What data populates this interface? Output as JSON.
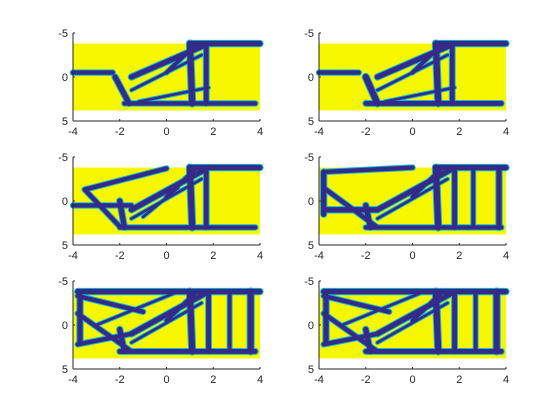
{
  "colors": {
    "background": "#f7f700",
    "structure": "#352a87",
    "edge": "#0fbbd3",
    "axis": "#262626"
  },
  "chart_data": [
    {
      "type": "image",
      "title": "",
      "xlabel": "",
      "ylabel": "",
      "xlim": [
        -4,
        4
      ],
      "ylim": [
        -5,
        5
      ],
      "y_reversed": true,
      "xticks": [
        "-4",
        "-2",
        "0",
        "2",
        "4"
      ],
      "yticks": [
        "-5",
        "0",
        "5"
      ],
      "bars": [
        [
          -4,
          -0.5,
          -2.3,
          -0.5,
          0.5
        ],
        [
          -2.2,
          0,
          -1.6,
          3,
          0.6
        ],
        [
          -1.8,
          3,
          3.8,
          3,
          0.5
        ],
        [
          -1.5,
          0,
          1.8,
          -3.8,
          0.6
        ],
        [
          0,
          -0.5,
          1.3,
          -3.8,
          0.45
        ],
        [
          1,
          -3.8,
          1.1,
          3,
          0.7
        ],
        [
          1.7,
          -3.8,
          1.7,
          3,
          0.55
        ],
        [
          1,
          -3.8,
          4,
          -3.8,
          0.6
        ],
        [
          -1.5,
          1.5,
          1.5,
          -2.5,
          0.3
        ],
        [
          -1.2,
          2.8,
          1.8,
          1.2,
          0.3
        ]
      ]
    },
    {
      "type": "image",
      "title": "",
      "xlabel": "",
      "ylabel": "",
      "xlim": [
        -4,
        4
      ],
      "ylim": [
        -5,
        5
      ],
      "y_reversed": true,
      "xticks": [
        "-4",
        "-2",
        "0",
        "2",
        "4"
      ],
      "yticks": [
        "-5",
        "0",
        "5"
      ],
      "bars": [
        [
          -4,
          -0.5,
          -2.3,
          -0.5,
          0.5
        ],
        [
          -2,
          0,
          -1.5,
          3,
          0.7
        ],
        [
          -2,
          3,
          3.8,
          3,
          0.55
        ],
        [
          -1.5,
          0,
          1.8,
          -3.8,
          0.6
        ],
        [
          0,
          -0.5,
          1.3,
          -3.8,
          0.45
        ],
        [
          1,
          -3.8,
          1.1,
          3,
          0.7
        ],
        [
          1.7,
          -3.8,
          1.7,
          3,
          0.55
        ],
        [
          1,
          -3.8,
          4,
          -3.8,
          0.6
        ],
        [
          -1.5,
          1.5,
          1.5,
          -2.5,
          0.3
        ],
        [
          -1.2,
          2.8,
          1.8,
          1.2,
          0.3
        ]
      ]
    },
    {
      "type": "image",
      "title": "",
      "xlabel": "",
      "ylabel": "",
      "xlim": [
        -4,
        4
      ],
      "ylim": [
        -5,
        5
      ],
      "y_reversed": true,
      "xticks": [
        "-4",
        "-2",
        "0",
        "2",
        "4"
      ],
      "yticks": [
        "-5",
        "0",
        "5"
      ],
      "bars": [
        [
          -4,
          0.5,
          -1.5,
          0.5,
          0.5
        ],
        [
          -3.5,
          -1.3,
          0,
          -3.7,
          0.5
        ],
        [
          -3.5,
          -1.3,
          -2,
          2.9,
          0.5
        ],
        [
          -2,
          0,
          -1.8,
          3,
          0.6
        ],
        [
          -2,
          3,
          3.8,
          3,
          0.5
        ],
        [
          -1.5,
          1,
          1.8,
          -3.8,
          0.6
        ],
        [
          0,
          -0.5,
          1.3,
          -3.8,
          0.45
        ],
        [
          1,
          -3.8,
          1.1,
          3,
          0.7
        ],
        [
          1.7,
          -3.8,
          1.7,
          3,
          0.55
        ],
        [
          1,
          -3.8,
          4,
          -3.8,
          0.6
        ],
        [
          -1.5,
          2,
          1.5,
          -2.5,
          0.3
        ],
        [
          -1,
          1.8,
          0.5,
          -1.5,
          0.3
        ]
      ]
    },
    {
      "type": "image",
      "title": "",
      "xlabel": "",
      "ylabel": "",
      "xlim": [
        -4,
        4
      ],
      "ylim": [
        -5,
        5
      ],
      "y_reversed": true,
      "xticks": [
        "-4",
        "-2",
        "0",
        "2",
        "4"
      ],
      "yticks": [
        "-5",
        "0",
        "5"
      ],
      "bars": [
        [
          -3.8,
          -3.3,
          -3.8,
          1.5,
          0.6
        ],
        [
          -3.8,
          1,
          -1.5,
          1,
          0.6
        ],
        [
          -3.8,
          -3.3,
          0,
          -3.8,
          0.5
        ],
        [
          -3.8,
          -1.5,
          -1.5,
          3,
          0.5
        ],
        [
          -2,
          0.5,
          -1.8,
          3,
          0.6
        ],
        [
          -2,
          3,
          3.8,
          3,
          0.5
        ],
        [
          -1.5,
          1,
          1.8,
          -3.8,
          0.6
        ],
        [
          0,
          -0.5,
          1.3,
          -3.8,
          0.45
        ],
        [
          1,
          -3.8,
          1.1,
          3,
          0.7
        ],
        [
          1.8,
          -3.8,
          1.8,
          3,
          0.55
        ],
        [
          2.6,
          -3.8,
          2.6,
          3,
          0.45
        ],
        [
          3.7,
          -3.8,
          3.7,
          3,
          0.6
        ],
        [
          1,
          -3.8,
          4,
          -3.8,
          0.6
        ],
        [
          -1.5,
          2,
          1.5,
          -2.5,
          0.3
        ]
      ]
    },
    {
      "type": "image",
      "title": "",
      "xlabel": "",
      "ylabel": "",
      "xlim": [
        -4,
        4
      ],
      "ylim": [
        -5,
        5
      ],
      "y_reversed": true,
      "xticks": [
        "-4",
        "-2",
        "0",
        "2",
        "4"
      ],
      "yticks": [
        "-5",
        "0",
        "5"
      ],
      "bars": [
        [
          -3.7,
          -3.3,
          -3.7,
          2,
          0.6
        ],
        [
          -3.8,
          -3.8,
          4,
          -3.8,
          0.6
        ],
        [
          -3.8,
          2.2,
          -1.5,
          1,
          0.5
        ],
        [
          -3.8,
          -3.3,
          -1,
          -1.5,
          0.5
        ],
        [
          -3.8,
          -1.3,
          -1.5,
          3,
          0.5
        ],
        [
          -2,
          0.5,
          -1.8,
          3,
          0.6
        ],
        [
          -2,
          3,
          3.8,
          3,
          0.55
        ],
        [
          -1.5,
          1,
          1.8,
          -3.8,
          0.6
        ],
        [
          0,
          -0.5,
          1.3,
          -3.8,
          0.45
        ],
        [
          1,
          -3.8,
          1.1,
          3,
          0.7
        ],
        [
          1.8,
          -3.8,
          1.8,
          3,
          0.55
        ],
        [
          2.7,
          -3.8,
          2.7,
          3,
          0.45
        ],
        [
          3.6,
          -3.8,
          3.6,
          3,
          0.7
        ],
        [
          -1.5,
          2,
          1.5,
          -2.5,
          0.3
        ],
        [
          -3,
          0,
          0.5,
          -3.8,
          0.3
        ]
      ]
    },
    {
      "type": "image",
      "title": "",
      "xlabel": "",
      "ylabel": "",
      "xlim": [
        -4,
        4
      ],
      "ylim": [
        -5,
        5
      ],
      "y_reversed": true,
      "xticks": [
        "-4",
        "-2",
        "0",
        "2",
        "4"
      ],
      "yticks": [
        "-5",
        "0",
        "5"
      ],
      "bars": [
        [
          -3.7,
          -3.3,
          -3.7,
          2,
          0.6
        ],
        [
          -3.8,
          -3.8,
          4,
          -3.8,
          0.6
        ],
        [
          -3.8,
          2.2,
          -1.5,
          1,
          0.5
        ],
        [
          -3.8,
          -3.3,
          -1,
          -1.5,
          0.5
        ],
        [
          -3.8,
          -1.3,
          -1.5,
          3,
          0.5
        ],
        [
          -2,
          0.5,
          -1.8,
          3,
          0.6
        ],
        [
          -2,
          3,
          3.8,
          3,
          0.55
        ],
        [
          -1.5,
          1,
          1.8,
          -3.8,
          0.6
        ],
        [
          0,
          -0.5,
          1.3,
          -3.8,
          0.45
        ],
        [
          1,
          -3.8,
          1.1,
          3,
          0.7
        ],
        [
          1.8,
          -3.8,
          1.8,
          3,
          0.55
        ],
        [
          2.7,
          -3.8,
          2.7,
          3,
          0.45
        ],
        [
          3.6,
          -3.8,
          3.6,
          3,
          0.7
        ],
        [
          -1.5,
          2,
          1.5,
          -2.5,
          0.3
        ],
        [
          -3,
          0,
          0.5,
          -3.8,
          0.3
        ]
      ]
    }
  ]
}
